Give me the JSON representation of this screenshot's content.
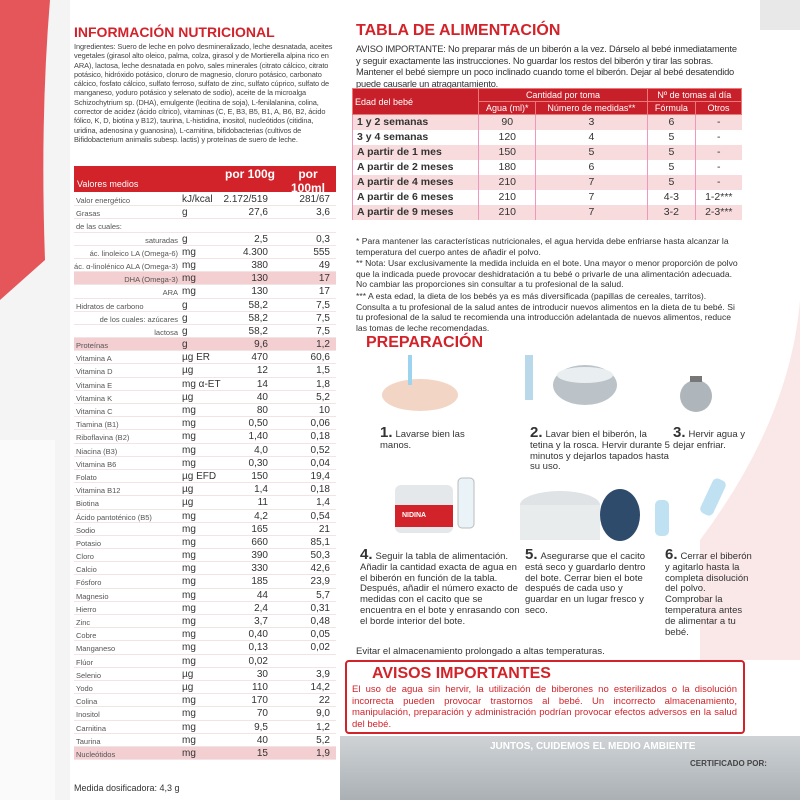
{
  "nutrition": {
    "title": "INFORMACIÓN NUTRICIONAL",
    "ingredients": "Ingredientes: Suero de leche en polvo desmineralizado, leche desnatada, aceites vegetales (girasol alto oleico, palma, colza, girasol y de Mortierella alpina rico en ARA), lactosa, leche desnatada en polvo, sales minerales (citrato cálcico, citrato potásico, hidróxido potásico, cloruro de magnesio, cloruro potásico, carbonato cálcico, fosfato cálcico, sulfato ferroso, sulfato de zinc, sulfato cúprico, sulfato de manganeso, yoduro potásico y selenato de sodio), aceite de la microalga Schizochytrium sp. (DHA), emulgente (lecitina de soja), L-fenilalanina, colina, corrector de acidez (ácido cítrico), vitaminas (C, E, B3, B5, B1, A, B6, B2, ácido fólico, K, D, biotina y B12), taurina, L-histidina, inositol, nucleótidos (citidina, uridina, adenosina y guanosina), L-carnitina, bifidobacterias (cultivos de Bifidobacterium animalis subesp. lactis) y proteínas de suero de leche.",
    "header": {
      "label": "Valores medios",
      "col1": "por 100g",
      "col2": "por 100ml"
    },
    "rows": [
      {
        "label": "Valor energético",
        "unit": "kJ/kcal",
        "per100g": "2.172/519",
        "per100ml": "281/67"
      },
      {
        "label": "Grasas",
        "unit": "g",
        "per100g": "27,6",
        "per100ml": "3,6"
      },
      {
        "label": "de las cuales:"
      },
      {
        "label": "saturadas",
        "unit": "g",
        "per100g": "2,5",
        "per100ml": "0,3",
        "sub": true
      },
      {
        "label": "ác. linoleico LA (Omega-6)",
        "unit": "mg",
        "per100g": "4.300",
        "per100ml": "555",
        "sub": true
      },
      {
        "label": "ác. α-linolénico ALA (Omega-3)",
        "unit": "mg",
        "per100g": "380",
        "per100ml": "49",
        "sub": true
      },
      {
        "label": "DHA (Omega-3)",
        "unit": "mg",
        "per100g": "130",
        "per100ml": "17",
        "sub": true,
        "highlight": true
      },
      {
        "label": "ARA",
        "unit": "mg",
        "per100g": "130",
        "per100ml": "17",
        "sub": true
      },
      {
        "label": "Hidratos de carbono",
        "unit": "g",
        "per100g": "58,2",
        "per100ml": "7,5"
      },
      {
        "label": "de los cuales: azúcares",
        "unit": "g",
        "per100g": "58,2",
        "per100ml": "7,5",
        "sub": true
      },
      {
        "label": "lactosa",
        "unit": "g",
        "per100g": "58,2",
        "per100ml": "7,5",
        "sub": true
      },
      {
        "label": "Proteínas",
        "unit": "g",
        "per100g": "9,6",
        "per100ml": "1,2",
        "highlight": true
      },
      {
        "label": "Vitamina A",
        "unit": "µg ER",
        "per100g": "470",
        "per100ml": "60,6"
      },
      {
        "label": "Vitamina D",
        "unit": "µg",
        "per100g": "12",
        "per100ml": "1,5"
      },
      {
        "label": "Vitamina E",
        "unit": "mg α-ET",
        "per100g": "14",
        "per100ml": "1,8"
      },
      {
        "label": "Vitamina K",
        "unit": "µg",
        "per100g": "40",
        "per100ml": "5,2"
      },
      {
        "label": "Vitamina C",
        "unit": "mg",
        "per100g": "80",
        "per100ml": "10"
      },
      {
        "label": "Tiamina (B1)",
        "unit": "mg",
        "per100g": "0,50",
        "per100ml": "0,06"
      },
      {
        "label": "Riboflavina (B2)",
        "unit": "mg",
        "per100g": "1,40",
        "per100ml": "0,18"
      },
      {
        "label": "Niacina (B3)",
        "unit": "mg",
        "per100g": "4,0",
        "per100ml": "0,52"
      },
      {
        "label": "Vitamina B6",
        "unit": "mg",
        "per100g": "0,30",
        "per100ml": "0,04"
      },
      {
        "label": "Folato",
        "unit": "µg EFD",
        "per100g": "150",
        "per100ml": "19,4"
      },
      {
        "label": "Vitamina B12",
        "unit": "µg",
        "per100g": "1,4",
        "per100ml": "0,18"
      },
      {
        "label": "Biotina",
        "unit": "µg",
        "per100g": "11",
        "per100ml": "1,4"
      },
      {
        "label": "Ácido pantoténico (B5)",
        "unit": "mg",
        "per100g": "4,2",
        "per100ml": "0,54"
      },
      {
        "label": "Sodio",
        "unit": "mg",
        "per100g": "165",
        "per100ml": "21"
      },
      {
        "label": "Potasio",
        "unit": "mg",
        "per100g": "660",
        "per100ml": "85,1"
      },
      {
        "label": "Cloro",
        "unit": "mg",
        "per100g": "390",
        "per100ml": "50,3"
      },
      {
        "label": "Calcio",
        "unit": "mg",
        "per100g": "330",
        "per100ml": "42,6"
      },
      {
        "label": "Fósforo",
        "unit": "mg",
        "per100g": "185",
        "per100ml": "23,9"
      },
      {
        "label": "Magnesio",
        "unit": "mg",
        "per100g": "44",
        "per100ml": "5,7"
      },
      {
        "label": "Hierro",
        "unit": "mg",
        "per100g": "2,4",
        "per100ml": "0,31"
      },
      {
        "label": "Zinc",
        "unit": "mg",
        "per100g": "3,7",
        "per100ml": "0,48"
      },
      {
        "label": "Cobre",
        "unit": "mg",
        "per100g": "0,40",
        "per100ml": "0,05"
      },
      {
        "label": "Manganeso",
        "unit": "mg",
        "per100g": "0,13",
        "per100ml": "0,02"
      },
      {
        "label": "Flúor",
        "unit": "mg",
        "per100g": "0,02"
      },
      {
        "label": "Selenio",
        "unit": "µg",
        "per100g": "30",
        "per100ml": "3,9"
      },
      {
        "label": "Yodo",
        "unit": "µg",
        "per100g": "110",
        "per100ml": "14,2"
      },
      {
        "label": "Colina",
        "unit": "mg",
        "per100g": "170",
        "per100ml": "22"
      },
      {
        "label": "Inositol",
        "unit": "mg",
        "per100g": "70",
        "per100ml": "9,0"
      },
      {
        "label": "Carnitina",
        "unit": "mg",
        "per100g": "9,5",
        "per100ml": "1,2"
      },
      {
        "label": "Taurina",
        "unit": "mg",
        "per100g": "40",
        "per100ml": "5,2"
      },
      {
        "label": "Nucleótidos",
        "unit": "mg",
        "per100g": "15",
        "per100ml": "1,9",
        "highlight": true
      }
    ],
    "footer": "Medida dosificadora: 4,3 g"
  },
  "feeding": {
    "title": "TABLA DE ALIMENTACIÓN",
    "notice": "AVISO IMPORTANTE: No preparar más de un biberón a la vez. Dárselo al bebé inmediatamente y seguir exactamente las instrucciones. No guardar los restos del biberón y tirar las sobras. Mantener el bebé siempre un poco inclinado cuando tome el biberón. Dejar al bebé desatendido puede causarle un atragantamiento.",
    "headers": {
      "age": "Edad del bebé",
      "amount": "Cantidad por toma",
      "water": "Agua (ml)*",
      "measures": "Número de medidas**",
      "feeds": "Nº de tomas al día",
      "formula": "Fórmula",
      "others": "Otros"
    },
    "rows": [
      [
        "1 y 2 semanas",
        "90",
        "3",
        "6",
        "-"
      ],
      [
        "3 y 4 semanas",
        "120",
        "4",
        "5",
        "-"
      ],
      [
        "A partir de 1 mes",
        "150",
        "5",
        "5",
        "-"
      ],
      [
        "A partir de 2 meses",
        "180",
        "6",
        "5",
        "-"
      ],
      [
        "A partir de 4 meses",
        "210",
        "7",
        "5",
        "-"
      ],
      [
        "A partir de 6 meses",
        "210",
        "7",
        "4-3",
        "1-2***"
      ],
      [
        "A partir de 9 meses",
        "210",
        "7",
        "3-2",
        "2-3***"
      ]
    ],
    "notes": [
      "* Para mantener las características nutricionales, el agua hervida debe enfriarse hasta alcanzar la temperatura del cuerpo antes de añadir el polvo.",
      "** Nota: Usar exclusivamente la medida incluida en el bote. Una mayor o menor proporción de polvo que la indicada puede provocar deshidratación a tu bebé o privarle de una alimentación adecuada. No cambiar las proporciones sin consultar a tu profesional de la salud.",
      "*** A esta edad, la dieta de los bebés ya es más diversificada (papillas de cereales, tarritos). Consulta a tu profesional de la salud antes de introducir nuevos alimentos en la dieta de tu bebé. Si tu profesional de la salud te recomienda una introducción adelantada de nuevos alimentos, reduce las tomas de leche recomendadas."
    ]
  },
  "preparation": {
    "title": "PREPARACIÓN",
    "steps": [
      {
        "number": "1.",
        "text": "Lavarse bien las manos."
      },
      {
        "number": "2.",
        "text": "Lavar bien el biberón, la tetina y la rosca. Hervir durante 5 minutos y dejarlos tapados hasta su uso."
      },
      {
        "number": "3.",
        "text": "Hervir agua y dejar enfriar."
      },
      {
        "number": "4.",
        "text": "Seguir la tabla de alimentación. Añadir la cantidad exacta de agua en el biberón en función de la tabla. Después, añadir el número exacto de medidas con el cacito que se encuentra en el bote y enrasando con el borde interior del bote."
      },
      {
        "number": "5.",
        "text": "Asegurarse que el cacito está seco y guardarlo dentro del bote. Cerrar bien el bote después de cada uso y guardar en un lugar fresco y seco."
      },
      {
        "number": "6.",
        "text": "Cerrar el biberón y agitarlo hasta la completa disolución del polvo. Comprobar la temperatura antes de alimentar a tu bebé."
      }
    ],
    "storage": "Evitar el almacenamiento prolongado a altas temperaturas.",
    "brand": "NIDINA"
  },
  "warnings": {
    "title": "AVISOS IMPORTANTES",
    "text": "El uso de agua sin hervir, la utilización de biberones no esterilizados o la disolución incorrecta pueden provocar trastornos al bebé. Un incorrecto almacenamiento, manipulación, preparación y administración podrían provocar efectos adversos en la salud del bebé."
  },
  "environment": {
    "title": "JUNTOS, CUIDEMOS EL MEDIO AMBIENTE",
    "certified": "CERTIFICADO POR:"
  }
}
